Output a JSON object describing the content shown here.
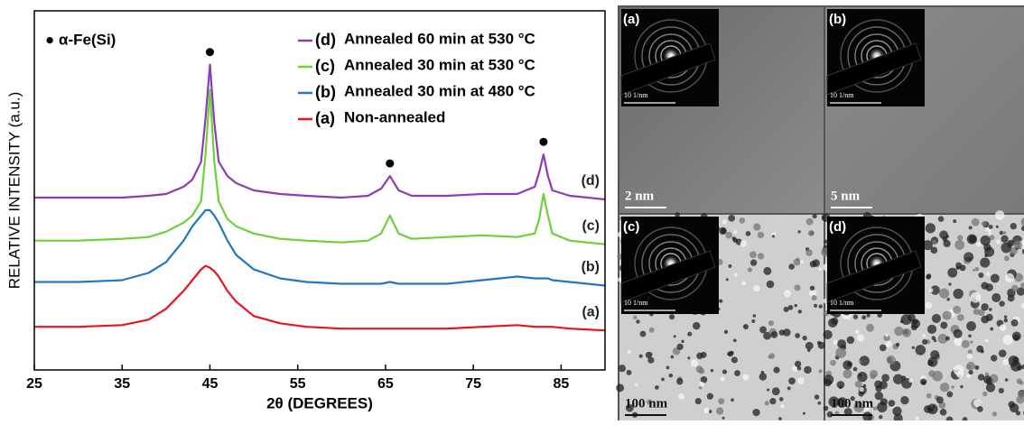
{
  "chart_data": {
    "type": "line",
    "xlabel": "2θ (DEGREES)",
    "ylabel": "RELATIVE INTENSITY (a.u.)",
    "annotation": "● α-Fe(Si)",
    "peak_markers_x": [
      45,
      65.5,
      83
    ],
    "xlim": [
      25,
      90
    ],
    "xticks": [
      25,
      35,
      45,
      55,
      65,
      75,
      85
    ],
    "ylim": [
      0,
      100
    ],
    "legend": "upper right",
    "x": [
      25,
      30,
      35,
      38,
      40,
      42,
      43,
      44,
      44.5,
      45,
      45.5,
      46,
      47,
      48,
      50,
      53,
      56,
      60,
      63,
      64.5,
      65.5,
      66.5,
      68,
      72,
      76,
      80,
      82,
      82.5,
      83,
      83.5,
      84,
      86,
      90
    ],
    "series": [
      {
        "label": "(d)",
        "name": "Annealed 60 min at 530 °C",
        "color": "#8e3bb5",
        "values": [
          48,
          48,
          48,
          48.5,
          49,
          51,
          53,
          58,
          70,
          85,
          69,
          58,
          54,
          52,
          50,
          49,
          48.5,
          48,
          48.5,
          50.5,
          54,
          50,
          48.5,
          48.5,
          49,
          49,
          51,
          55,
          60,
          54,
          50,
          48.5,
          47.5
        ]
      },
      {
        "label": "(c)",
        "name": "Annealed 30 min at 530 °C",
        "color": "#6dd13a",
        "values": [
          36,
          36,
          36.5,
          37,
          38.5,
          41,
          43,
          47,
          60,
          78,
          58,
          47,
          42,
          40,
          38,
          36.5,
          36,
          35.5,
          36,
          38,
          43,
          38,
          36.5,
          37,
          37.5,
          37,
          38,
          42,
          49,
          43,
          38,
          36,
          35
        ]
      },
      {
        "label": "(b)",
        "name": "Annealed 30 min at 480 °C",
        "color": "#1f78c4",
        "values": [
          24.5,
          24.5,
          25,
          27,
          30,
          36,
          40,
          43,
          44.5,
          44.5,
          43,
          41,
          36,
          32,
          28,
          25.5,
          24.5,
          24,
          24,
          24,
          24.5,
          24,
          24,
          24,
          25,
          26,
          25.5,
          25.5,
          25.5,
          25.5,
          25,
          24.5,
          23.5
        ]
      },
      {
        "label": "(a)",
        "name": "Non-annealed",
        "color": "#e8161b",
        "values": [
          12,
          12,
          12.5,
          14,
          17,
          22,
          25,
          28,
          29,
          28.5,
          27.5,
          26,
          22,
          19,
          15,
          13,
          12,
          11.5,
          11.5,
          11.5,
          11.5,
          11.5,
          11.5,
          11.5,
          12,
          12.5,
          12,
          12,
          12,
          12,
          12,
          11.5,
          11
        ]
      }
    ]
  },
  "panels": [
    {
      "label": "(a)",
      "scale": "2 nm",
      "inset_scale": "10 1/nm"
    },
    {
      "label": "(b)",
      "scale": "5 nm",
      "inset_scale": "10 1/nm"
    },
    {
      "label": "(c)",
      "scale": "100 nm",
      "inset_scale": "10 1/nm"
    },
    {
      "label": "(d)",
      "scale": "100 nm",
      "inset_scale": "10 1/nm"
    }
  ]
}
